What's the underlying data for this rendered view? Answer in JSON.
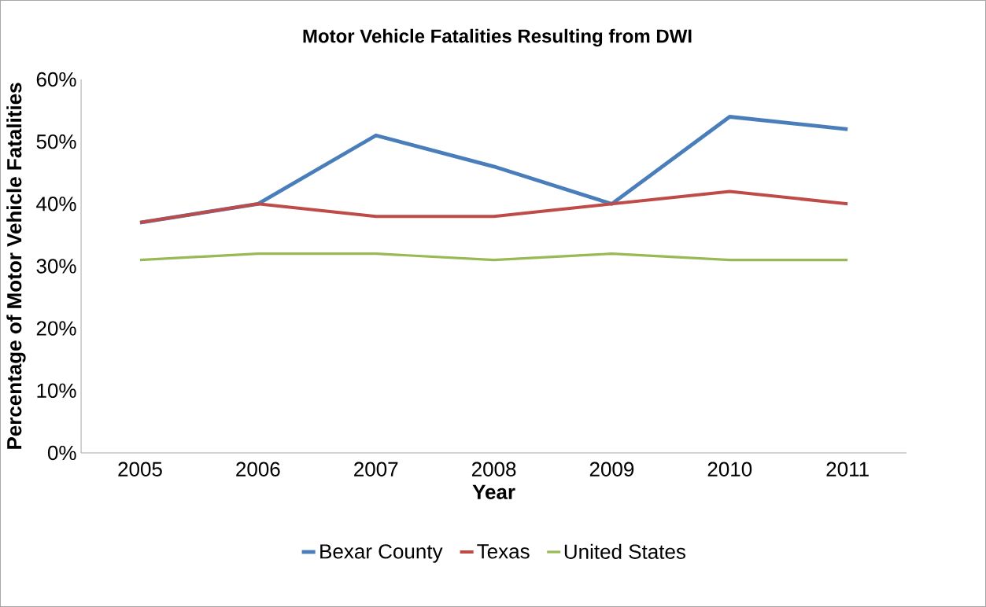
{
  "chart_data": {
    "type": "line",
    "title": "Motor Vehicle Fatalities Resulting from DWI",
    "xlabel": "Year",
    "ylabel": "Percentage of Motor Vehicle Fatalities",
    "categories": [
      "2005",
      "2006",
      "2007",
      "2008",
      "2009",
      "2010",
      "2011"
    ],
    "series": [
      {
        "name": "Bexar County",
        "color": "#4a7ebb",
        "values": [
          37,
          40,
          51,
          46,
          40,
          54,
          52
        ]
      },
      {
        "name": "Texas",
        "color": "#be4b48",
        "values": [
          37,
          40,
          38,
          38,
          40,
          42,
          40
        ]
      },
      {
        "name": "United States",
        "color": "#98b954",
        "values": [
          31,
          32,
          32,
          31,
          32,
          31,
          31
        ]
      }
    ],
    "ylim": [
      0,
      60
    ],
    "yticks": [
      {
        "value": 0,
        "label": "0%"
      },
      {
        "value": 10,
        "label": "10%"
      },
      {
        "value": 20,
        "label": "20%"
      },
      {
        "value": 30,
        "label": "30%"
      },
      {
        "value": 40,
        "label": "40%"
      },
      {
        "value": 50,
        "label": "50%"
      },
      {
        "value": 60,
        "label": "60%"
      }
    ],
    "legend": "bottom"
  }
}
